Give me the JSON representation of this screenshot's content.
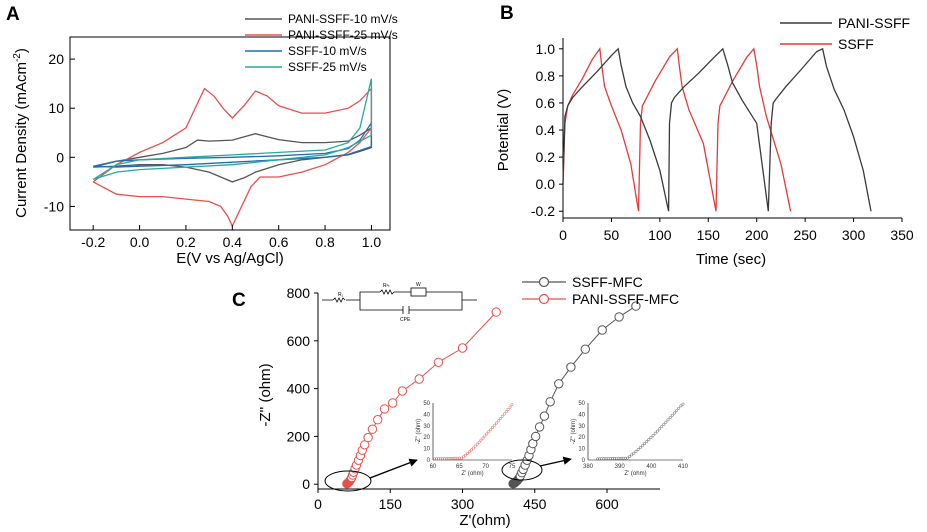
{
  "chart_data": [
    {
      "panel": "A",
      "type": "line",
      "xlabel": "E(V vs Ag/AgCl)",
      "ylabel": "Current Density (mAcm",
      "ylabel_sup": "-2",
      "ylabel_close": ")",
      "xlim": [
        -0.3,
        1.08
      ],
      "ylim": [
        -14.8,
        24.5
      ],
      "xticks": [
        "-0.2",
        "0.0",
        "0.2",
        "0.4",
        "0.6",
        "0.8",
        "1.0"
      ],
      "yticks": [
        "-10",
        "0",
        "10",
        "20"
      ],
      "series": [
        {
          "name": "PANI-SSFF-10 mV/s",
          "color": "#555555",
          "x": [
            -0.2,
            -0.1,
            0.0,
            0.1,
            0.2,
            0.25,
            0.3,
            0.4,
            0.5,
            0.55,
            0.6,
            0.7,
            0.8,
            0.9,
            0.95,
            1.0,
            1.0,
            0.95,
            0.9,
            0.8,
            0.7,
            0.6,
            0.5,
            0.45,
            0.4,
            0.3,
            0.2,
            0.1,
            0.0,
            -0.1,
            -0.2
          ],
          "y": [
            -2,
            -0.8,
            0,
            0.8,
            2,
            3.5,
            3.3,
            3.5,
            4.8,
            4.2,
            3.6,
            3.0,
            3.0,
            3.3,
            4.5,
            6,
            2,
            1.2,
            0.5,
            0,
            -0.5,
            -1.5,
            -3,
            -4.2,
            -5,
            -3,
            -2,
            -1.5,
            -1.5,
            -1.8,
            -2
          ]
        },
        {
          "name": "PANI-SSFF-25 mV/s",
          "color": "#e8504b",
          "x": [
            -0.2,
            -0.1,
            0.0,
            0.1,
            0.2,
            0.25,
            0.28,
            0.32,
            0.36,
            0.4,
            0.45,
            0.5,
            0.55,
            0.6,
            0.7,
            0.8,
            0.9,
            0.95,
            1.0,
            1.0,
            0.95,
            0.9,
            0.8,
            0.7,
            0.6,
            0.52,
            0.48,
            0.45,
            0.42,
            0.4,
            0.38,
            0.35,
            0.3,
            0.2,
            0.1,
            0.0,
            -0.1,
            -0.2
          ],
          "y": [
            -5,
            -1.5,
            1,
            3,
            6,
            11,
            14,
            12.5,
            10,
            8,
            10.5,
            13.5,
            12.5,
            10.5,
            9,
            9,
            10,
            11.5,
            14,
            6,
            3,
            1,
            -1.5,
            -3,
            -4,
            -4,
            -6,
            -9,
            -12,
            -14,
            -12,
            -10,
            -9,
            -8.5,
            -8,
            -8,
            -7.5,
            -5
          ]
        },
        {
          "name": "SSFF-10 mV/s",
          "color": "#1f6fb5",
          "x": [
            -0.2,
            -0.1,
            0.0,
            0.2,
            0.4,
            0.6,
            0.8,
            0.9,
            0.95,
            1.0,
            1.0,
            0.9,
            0.8,
            0.6,
            0.4,
            0.2,
            0.0,
            -0.1,
            -0.2
          ],
          "y": [
            -1.8,
            -0.8,
            -0.5,
            -0.2,
            0,
            0.3,
            0.8,
            1.8,
            3.5,
            7,
            2.2,
            0.6,
            0,
            -0.5,
            -1,
            -1.5,
            -1.8,
            -2,
            -1.8
          ]
        },
        {
          "name": "SSFF-25 mV/s",
          "color": "#27aa9c",
          "x": [
            -0.2,
            -0.1,
            0.0,
            0.2,
            0.4,
            0.6,
            0.8,
            0.9,
            0.95,
            1.0,
            1.0,
            0.9,
            0.8,
            0.6,
            0.4,
            0.2,
            0.0,
            -0.1,
            -0.2
          ],
          "y": [
            -4.5,
            -1.5,
            -0.5,
            0,
            0.5,
            1,
            1.5,
            3,
            6,
            16,
            4.5,
            2,
            0.5,
            -0.5,
            -1.5,
            -2,
            -2.5,
            -3,
            -4.5
          ]
        }
      ],
      "legend_extra_colors": [
        "#2e8b57"
      ]
    },
    {
      "panel": "B",
      "type": "line",
      "xlabel": "Time (sec)",
      "ylabel": "Potential (V)",
      "xlim": [
        0,
        350
      ],
      "ylim": [
        -0.25,
        1.08
      ],
      "xticks": [
        "0",
        "50",
        "100",
        "150",
        "200",
        "250",
        "300",
        "350"
      ],
      "yticks": [
        "-0.2",
        "0.0",
        "0.2",
        "0.4",
        "0.6",
        "0.8",
        "1.0"
      ],
      "series": [
        {
          "name": "PANI-SSFF",
          "color": "#3a3a3a",
          "x": [
            0,
            2,
            5,
            10,
            20,
            35,
            50,
            57,
            60,
            65,
            72,
            80,
            90,
            100,
            109,
            110,
            112,
            115,
            125,
            140,
            155,
            165,
            170,
            175,
            185,
            200,
            212,
            215,
            217,
            220,
            230,
            245,
            262,
            268,
            272,
            280,
            290,
            300,
            310,
            318
          ],
          "y": [
            0,
            0.5,
            0.58,
            0.64,
            0.72,
            0.83,
            0.95,
            1.0,
            0.88,
            0.72,
            0.6,
            0.5,
            0.32,
            0.1,
            -0.2,
            0.45,
            0.6,
            0.64,
            0.72,
            0.82,
            0.93,
            1.0,
            0.88,
            0.75,
            0.62,
            0.45,
            -0.2,
            0.45,
            0.6,
            0.63,
            0.72,
            0.84,
            0.98,
            1.0,
            0.87,
            0.7,
            0.55,
            0.35,
            0.1,
            -0.2
          ]
        },
        {
          "name": "SSFF",
          "color": "#e23b3b",
          "x": [
            0,
            2,
            5,
            10,
            20,
            30,
            38,
            40,
            43,
            50,
            60,
            70,
            78,
            80,
            82,
            85,
            95,
            110,
            118,
            120,
            123,
            130,
            145,
            158,
            160,
            162,
            165,
            175,
            190,
            197,
            200,
            203,
            210,
            225,
            235
          ],
          "y": [
            0,
            0.45,
            0.58,
            0.66,
            0.78,
            0.92,
            1.0,
            0.88,
            0.72,
            0.58,
            0.4,
            0.15,
            -0.2,
            0.45,
            0.58,
            0.62,
            0.76,
            0.94,
            1.0,
            0.88,
            0.72,
            0.55,
            0.3,
            -0.2,
            0.45,
            0.58,
            0.62,
            0.76,
            0.94,
            1.0,
            0.88,
            0.72,
            0.5,
            0.15,
            -0.2
          ]
        }
      ]
    },
    {
      "panel": "C",
      "type": "scatter",
      "xlabel": "Z'(ohm)",
      "ylabel": "-Z'' (ohm)",
      "xlim": [
        0,
        710
      ],
      "ylim": [
        -20,
        800
      ],
      "xticks": [
        "0",
        "150",
        "300",
        "450",
        "600"
      ],
      "yticks": [
        "0",
        "200",
        "400",
        "600",
        "800"
      ],
      "series": [
        {
          "name": "SSFF-MFC",
          "color": "#555555",
          "x": [
            405,
            408,
            411,
            414,
            417,
            420,
            423,
            426,
            430,
            434,
            438,
            442,
            446,
            452,
            460,
            470,
            482,
            500,
            525,
            555,
            590,
            625,
            660
          ],
          "y": [
            2,
            5,
            10,
            16,
            24,
            35,
            48,
            62,
            80,
            100,
            120,
            145,
            170,
            200,
            240,
            285,
            345,
            420,
            490,
            565,
            645,
            700,
            745
          ]
        },
        {
          "name": "PANI-SSFF-MFC",
          "color": "#e8504b",
          "x": [
            60,
            62,
            64,
            66,
            68,
            70,
            72,
            74,
            77,
            80,
            84,
            88,
            92,
            97,
            104,
            113,
            124,
            138,
            155,
            175,
            210,
            250,
            300,
            370
          ],
          "y": [
            2,
            5,
            9,
            14,
            20,
            28,
            38,
            50,
            65,
            80,
            100,
            120,
            142,
            165,
            195,
            230,
            270,
            315,
            340,
            390,
            440,
            510,
            570,
            720
          ]
        }
      ],
      "inset1": {
        "xticks": [
          "60",
          "65",
          "70",
          "75"
        ],
        "yticks": [
          "0",
          "10",
          "20",
          "30",
          "40",
          "50"
        ],
        "xlabel": "Z' (ohm)",
        "ylabel": "-Z'' (ohm)"
      },
      "inset2": {
        "xticks": [
          "380",
          "390",
          "400",
          "410"
        ],
        "yticks": [
          "0",
          "10",
          "20",
          "30",
          "40",
          "50"
        ],
        "xlabel": "Z' (ohm)",
        "ylabel": "-Z'' (ohm)"
      },
      "circuit": {
        "labels": [
          "R₁",
          "Rᶜₜ",
          "W",
          "CPE"
        ]
      }
    }
  ],
  "labels": {
    "panel_a": "A",
    "panel_b": "B",
    "panel_c": "C"
  }
}
